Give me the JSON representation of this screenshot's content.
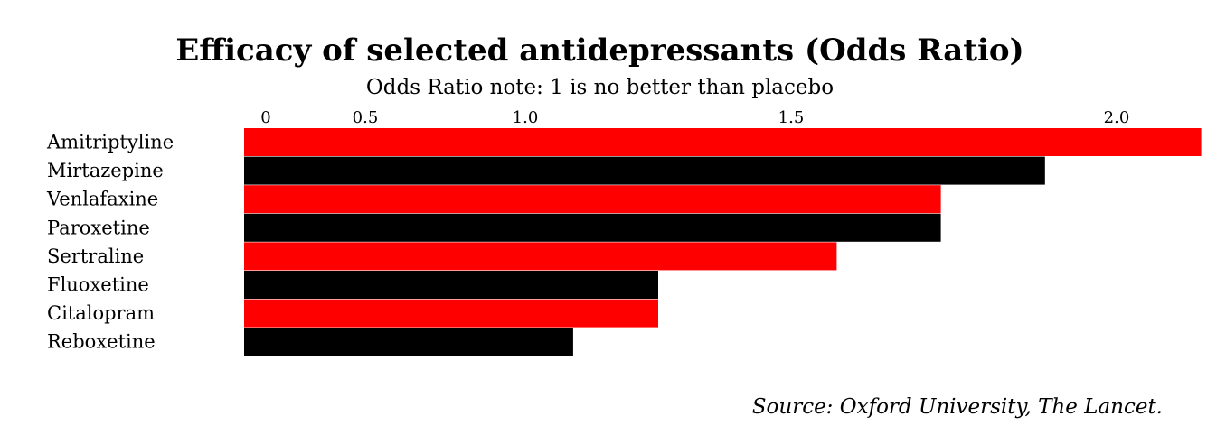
{
  "chart_data": {
    "type": "bar",
    "orientation": "horizontal",
    "title": "Efficacy of selected antidepressants (Odds Ratio)",
    "subtitle": "Odds Ratio note: 1 is no better than placebo",
    "categories": [
      "Amitriptyline",
      "Mirtazepine",
      "Venlafaxine",
      "Paroxetine",
      "Sertraline",
      "Fluoxetine",
      "Citalopram",
      "Reboxetine"
    ],
    "values": [
      2.13,
      1.89,
      1.73,
      1.73,
      1.57,
      1.25,
      1.25,
      1.09
    ],
    "bar_colors": [
      "#ff0000",
      "#000000",
      "#ff0000",
      "#000000",
      "#ff0000",
      "#000000",
      "#ff0000",
      "#000000"
    ],
    "x_ticks": [
      {
        "value": 0,
        "label": "0"
      },
      {
        "value": 0.5,
        "label": "0.5"
      },
      {
        "value": 1.0,
        "label": "1.0"
      },
      {
        "value": 1.5,
        "label": "1.5"
      },
      {
        "value": 2.0,
        "label": "2.0"
      }
    ],
    "xlim": [
      0.1,
      2.15
    ],
    "axis_position": "top",
    "grid": false,
    "legend": false,
    "source": "Source: Oxford University, The Lancet."
  }
}
